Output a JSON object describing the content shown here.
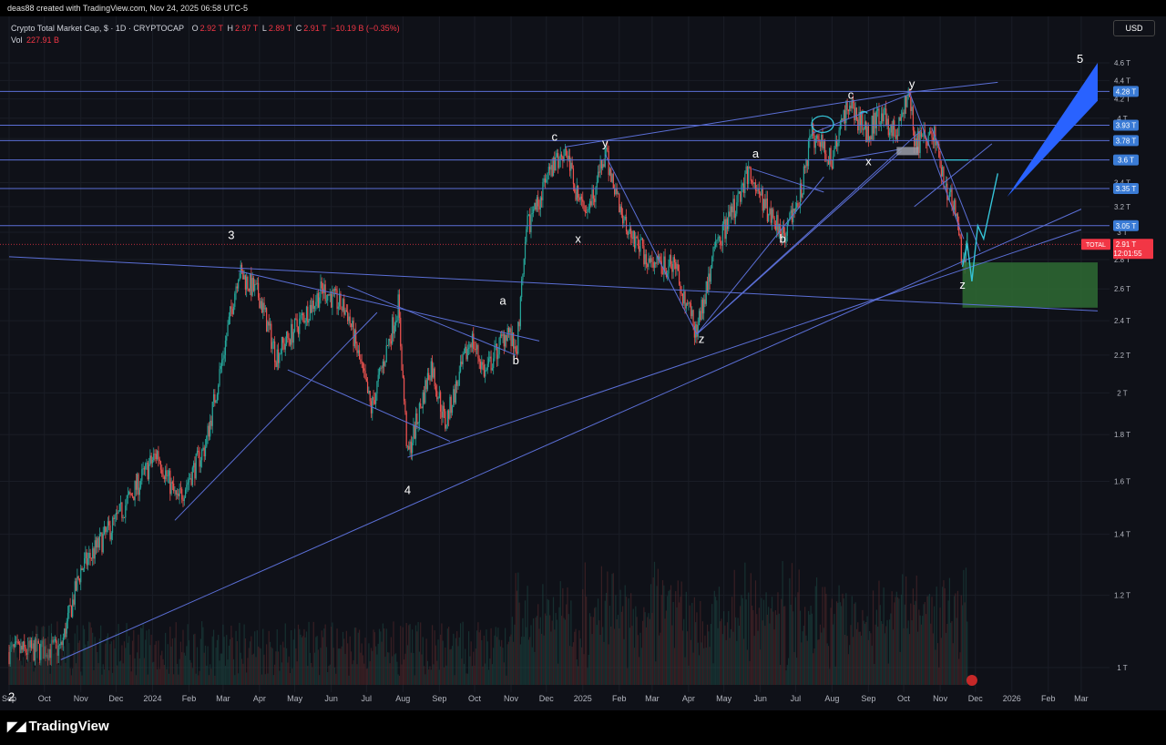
{
  "top_caption": "deas88 created with TradingView.com, Nov 24, 2025 06:58 UTC-5",
  "header": {
    "symbol": "Crypto Total Market Cap, $ · 1D · CRYPTOCAP",
    "o_label": "O",
    "o_value": "2.92 T",
    "h_label": "H",
    "h_value": "2.97 T",
    "l_label": "L",
    "l_value": "2.89 T",
    "c_label": "C",
    "c_value": "2.91 T",
    "change": "−10.19 B (−0.35%)",
    "vol_label": "Vol",
    "vol_value": "227.91 B"
  },
  "currency_button": "USD",
  "brand": "TradingView",
  "colors": {
    "background": "#0f1118",
    "up": "#26a69a",
    "down": "#ef5350",
    "drawing": "#5b6fd6",
    "highlight": "#3a7bd5",
    "zone": "#2e6b34",
    "target": "#2962ff",
    "cyan": "#35c4d8",
    "price_tag": "#f23645"
  },
  "chart_data": {
    "type": "candlestick",
    "title": "Crypto Total Market Cap, $ · 1D · CRYPTOCAP",
    "y_scale": "log",
    "y_ticks": [
      "4.6 T",
      "4.4 T",
      "4.2 T",
      "4 T",
      "3.8 T",
      "3.6 T",
      "3.4 T",
      "3.2 T",
      "3 T",
      "2.8 T",
      "2.6 T",
      "2.4 T",
      "2.2 T",
      "2 T",
      "1.8 T",
      "1.6 T",
      "1.4 T",
      "1.2 T",
      "1 T"
    ],
    "y_tick_values": [
      4.6,
      4.4,
      4.2,
      4.0,
      3.8,
      3.6,
      3.4,
      3.2,
      3.0,
      2.8,
      2.6,
      2.4,
      2.2,
      2.0,
      1.8,
      1.6,
      1.4,
      1.2,
      1.0
    ],
    "x_ticks": [
      "Sep",
      "Oct",
      "Nov",
      "Dec",
      "2024",
      "Feb",
      "Mar",
      "Apr",
      "May",
      "Jun",
      "Jul",
      "Aug",
      "Sep",
      "Oct",
      "Nov",
      "Dec",
      "2025",
      "Feb",
      "Mar",
      "Apr",
      "May",
      "Jun",
      "Jul",
      "Aug",
      "Sep",
      "Oct",
      "Nov",
      "Dec",
      "2026",
      "Feb",
      "Mar"
    ],
    "price_path": [
      {
        "t": "2023-09-01",
        "v": 1.04
      },
      {
        "t": "2023-10-15",
        "v": 1.05
      },
      {
        "t": "2023-11-01",
        "v": 1.28
      },
      {
        "t": "2023-12-01",
        "v": 1.45
      },
      {
        "t": "2024-01-05",
        "v": 1.72
      },
      {
        "t": "2024-01-22",
        "v": 1.52
      },
      {
        "t": "2024-02-15",
        "v": 1.75
      },
      {
        "t": "2024-03-01",
        "v": 2.2
      },
      {
        "t": "2024-03-14",
        "v": 2.72
      },
      {
        "t": "2024-04-01",
        "v": 2.55
      },
      {
        "t": "2024-04-15",
        "v": 2.2
      },
      {
        "t": "2024-05-01",
        "v": 2.35
      },
      {
        "t": "2024-05-25",
        "v": 2.6
      },
      {
        "t": "2024-06-15",
        "v": 2.45
      },
      {
        "t": "2024-07-05",
        "v": 1.92
      },
      {
        "t": "2024-07-28",
        "v": 2.5
      },
      {
        "t": "2024-08-05",
        "v": 1.7
      },
      {
        "t": "2024-08-25",
        "v": 2.15
      },
      {
        "t": "2024-09-06",
        "v": 1.85
      },
      {
        "t": "2024-09-28",
        "v": 2.3
      },
      {
        "t": "2024-10-10",
        "v": 2.1
      },
      {
        "t": "2024-10-29",
        "v": 2.35
      },
      {
        "t": "2024-11-05",
        "v": 2.2
      },
      {
        "t": "2024-11-15",
        "v": 3.05
      },
      {
        "t": "2024-12-05",
        "v": 3.5
      },
      {
        "t": "2024-12-17",
        "v": 3.72
      },
      {
        "t": "2024-12-30",
        "v": 3.2
      },
      {
        "t": "2025-01-10",
        "v": 3.3
      },
      {
        "t": "2025-01-20",
        "v": 3.65
      },
      {
        "t": "2025-02-05",
        "v": 3.1
      },
      {
        "t": "2025-02-28",
        "v": 2.75
      },
      {
        "t": "2025-03-20",
        "v": 2.75
      },
      {
        "t": "2025-04-08",
        "v": 2.32
      },
      {
        "t": "2025-04-22",
        "v": 2.85
      },
      {
        "t": "2025-05-10",
        "v": 3.2
      },
      {
        "t": "2025-05-22",
        "v": 3.5
      },
      {
        "t": "2025-06-05",
        "v": 3.2
      },
      {
        "t": "2025-06-22",
        "v": 3.0
      },
      {
        "t": "2025-07-05",
        "v": 3.3
      },
      {
        "t": "2025-07-15",
        "v": 3.85
      },
      {
        "t": "2025-08-01",
        "v": 3.6
      },
      {
        "t": "2025-08-14",
        "v": 4.15
      },
      {
        "t": "2025-09-01",
        "v": 3.85
      },
      {
        "t": "2025-09-10",
        "v": 4.05
      },
      {
        "t": "2025-09-25",
        "v": 3.85
      },
      {
        "t": "2025-10-06",
        "v": 4.27
      },
      {
        "t": "2025-10-10",
        "v": 3.75
      },
      {
        "t": "2025-10-27",
        "v": 3.85
      },
      {
        "t": "2025-11-04",
        "v": 3.4
      },
      {
        "t": "2025-11-13",
        "v": 3.2
      },
      {
        "t": "2025-11-21",
        "v": 2.75
      },
      {
        "t": "2025-11-24",
        "v": 2.91
      }
    ],
    "horizontal_levels": [
      "4.28 T",
      "3.93 T",
      "3.78 T",
      "3.6 T",
      "3.35 T",
      "3.05 T"
    ],
    "horizontal_level_values": [
      4.28,
      3.93,
      3.78,
      3.6,
      3.35,
      3.05
    ],
    "last_price": {
      "symbol": "TOTAL",
      "value": "2.91 T",
      "countdown": "12:01:55"
    },
    "wave_labels": [
      {
        "text": "2",
        "t": "2023-09-03",
        "v": 0.92
      },
      {
        "text": "3",
        "t": "2024-03-08",
        "v": 2.95
      },
      {
        "text": "4",
        "t": "2024-08-05",
        "v": 1.55
      },
      {
        "text": "a",
        "t": "2024-10-25",
        "v": 2.5
      },
      {
        "text": "b",
        "t": "2024-11-05",
        "v": 2.15
      },
      {
        "text": "c",
        "t": "2024-12-08",
        "v": 3.78
      },
      {
        "text": "x",
        "t": "2024-12-28",
        "v": 2.92
      },
      {
        "text": "y",
        "t": "2025-01-20",
        "v": 3.72
      },
      {
        "text": "z",
        "t": "2025-04-12",
        "v": 2.27
      },
      {
        "text": "a",
        "t": "2025-05-28",
        "v": 3.62
      },
      {
        "text": "b",
        "t": "2025-06-20",
        "v": 2.92
      },
      {
        "text": "c",
        "t": "2025-08-17",
        "v": 4.2
      },
      {
        "text": "x",
        "t": "2025-09-01",
        "v": 3.55
      },
      {
        "text": "y",
        "t": "2025-10-08",
        "v": 4.32
      },
      {
        "text": "z",
        "t": "2025-11-20",
        "v": 2.6
      },
      {
        "text": "5",
        "t": "2026-02-28",
        "v": 4.6
      }
    ],
    "target_zone": {
      "from": "2025-11-20",
      "to": "2026-03-15",
      "low": 2.48,
      "high": 2.78
    }
  }
}
